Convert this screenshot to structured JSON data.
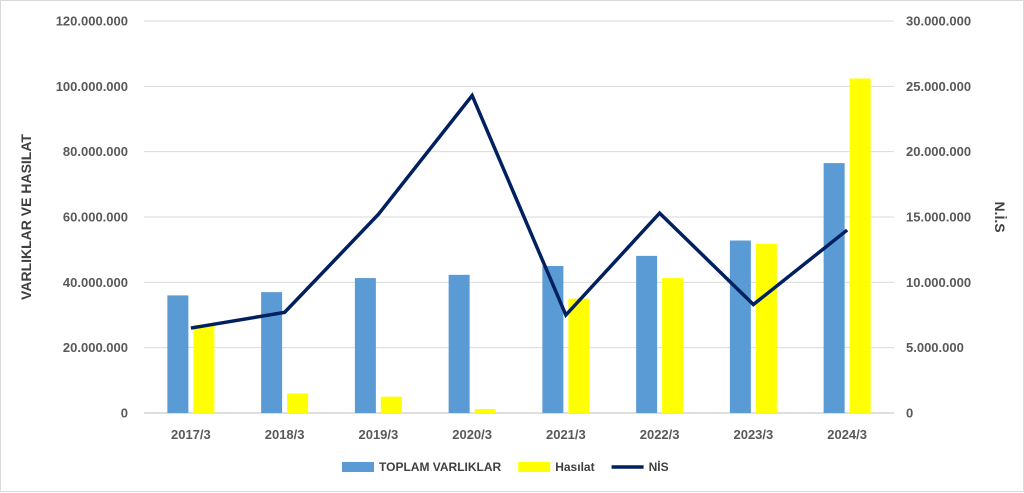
{
  "chart_data": {
    "type": "bar",
    "categories": [
      "2017/3",
      "2018/3",
      "2019/3",
      "2020/3",
      "2021/3",
      "2022/3",
      "2023/3",
      "2024/3"
    ],
    "series": [
      {
        "name": "TOPLAM VARLIKLAR",
        "type": "bar",
        "axis": "left",
        "color": "#5b9bd5",
        "values": [
          36000000,
          37000000,
          41300000,
          42300000,
          45000000,
          48100000,
          52800000,
          76500000
        ]
      },
      {
        "name": "Hasılat",
        "type": "bar",
        "axis": "left",
        "color": "#ffff00",
        "values": [
          27000000,
          6000000,
          5000000,
          1200000,
          35000000,
          41300000,
          51800000,
          102400000
        ]
      },
      {
        "name": "NİS",
        "type": "line",
        "axis": "right",
        "color": "#002060",
        "values": [
          6500000,
          7700000,
          15200000,
          24300000,
          7500000,
          15300000,
          8300000,
          14000000
        ]
      }
    ],
    "ylabel": "VARLIKLAR VE HASILAT",
    "y2label": "N.İ.S",
    "ylim": [
      0,
      120000000
    ],
    "y2lim": [
      0,
      30000000
    ],
    "yticks": [
      "0",
      "20.000.000",
      "40.000.000",
      "60.000.000",
      "80.000.000",
      "100.000.000",
      "120.000.000"
    ],
    "y2ticks": [
      "0",
      "5.000.000",
      "10.000.000",
      "15.000.000",
      "20.000.000",
      "25.000.000",
      "30.000.000"
    ],
    "grid": true,
    "legend": "bottom"
  }
}
